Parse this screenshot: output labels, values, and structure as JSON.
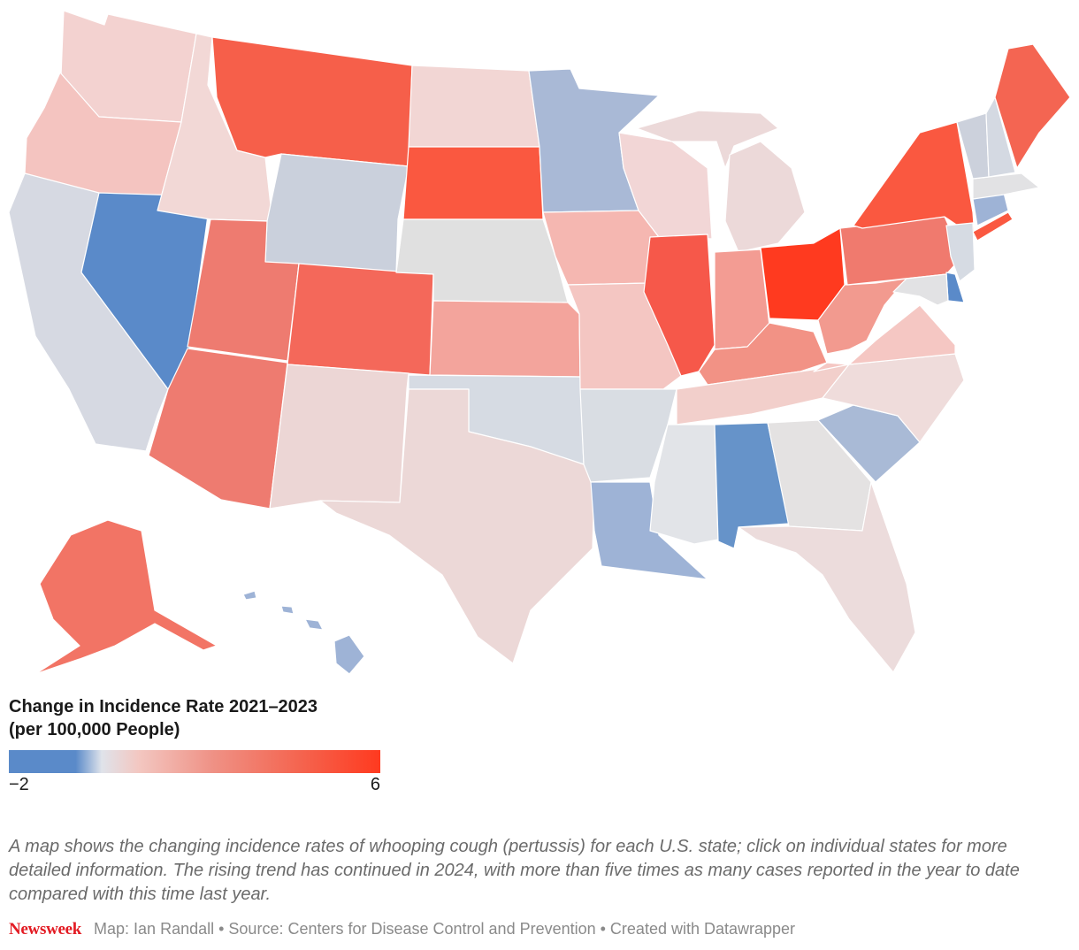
{
  "legend": {
    "title_line1": "Change in Incidence Rate 2021–2023",
    "title_line2": "(per 100,000 People)",
    "min_label": "−2",
    "max_label": "6",
    "colors": {
      "low": "#5a8ac9",
      "neutral": "#dfe3ea",
      "high": "#ff3a1f"
    }
  },
  "description": "A map shows the changing incidence rates of whooping cough (pertussis) for each U.S. state; click on individual states for more detailed information. The rising trend has continued in 2024, with more than five times as many cases reported in the year to date compared with this time last year.",
  "footer": {
    "brand": "Newsweek",
    "credits": "Map: Ian Randall • Source: Centers for Disease Control and Prevention • Created with Datawrapper"
  },
  "states": {
    "WA": "#f3d2d0",
    "OR": "#f4c4c0",
    "CA": "#d6d9e2",
    "NV": "#5a8ac9",
    "ID": "#f2d8d6",
    "MT": "#f65f4a",
    "WY": "#cad0dc",
    "UT": "#ee7b70",
    "AZ": "#ee7b70",
    "CO": "#f4685a",
    "NM": "#ecd6d5",
    "ND": "#f2d6d4",
    "SD": "#fa5840",
    "NE": "#e0e0e0",
    "KS": "#f3a49c",
    "OK": "#d6dbe3",
    "TX": "#ecd8d7",
    "MN": "#a9b9d6",
    "IA": "#f5b7b1",
    "MO": "#f4c6c2",
    "AR": "#d9dde3",
    "LA": "#9eb3d6",
    "WI": "#f2d6d6",
    "IL": "#f6584a",
    "MI": "#ecd9d9",
    "IN": "#f39c93",
    "OH": "#ff3a1f",
    "KY": "#f29285",
    "TN": "#f2cfcb",
    "MS": "#e2e4e8",
    "AL": "#6693c9",
    "GA": "#e4e2e2",
    "FL": "#ecdcdc",
    "SC": "#a9bad6",
    "NC": "#efdcdb",
    "VA": "#f5c7c3",
    "WV": "#f29a8f",
    "PA": "#f07a6e",
    "NY": "#fa5840",
    "ME": "#f46552",
    "VT": "#ccd1dc",
    "NH": "#d4d9e2",
    "MA": "#e2e2e4",
    "CT": "#9eb3d6",
    "NJ": "#d6dbe3",
    "DE": "#5a8ac9",
    "MD": "#e2e2e4",
    "AK": "#f27465",
    "HI": "#9eb3d6"
  }
}
